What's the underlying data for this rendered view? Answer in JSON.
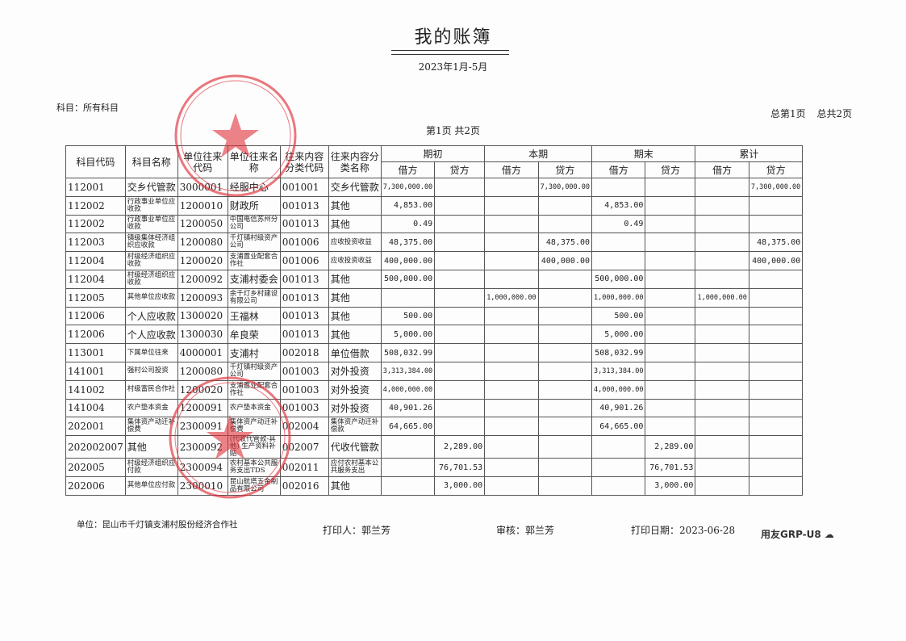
{
  "title": "我的账簿",
  "period": "2023年1月-5月",
  "subject": "科目：所有科目",
  "page_total": "总第1页 总共2页",
  "page_info": "第1页 共2页",
  "headers": {
    "code": "科目代码",
    "name": "科目名称",
    "unit_code": "单位往来代码",
    "unit_name": "单位往来名称",
    "cat_code": "往来内容分类代码",
    "cat_name": "往来内容分类名称",
    "groups": [
      "期初",
      "本期",
      "期末",
      "累计"
    ],
    "debit": "借方",
    "credit": "贷方"
  },
  "rows": [
    [
      "112001",
      "交乡代管款",
      "3000001",
      "经服中心",
      "001001",
      "交乡代管款",
      "7,300,000.00",
      "",
      "",
      "7,300,000.00",
      "",
      "",
      "",
      "7,300,000.00"
    ],
    [
      "112002",
      "行政事业单位应收款",
      "1200010",
      "财政所",
      "001013",
      "其他",
      "4,853.00",
      "",
      "",
      "",
      "4,853.00",
      "",
      "",
      ""
    ],
    [
      "112002",
      "行政事业单位应收款",
      "1200050",
      "中国电信苏州分公司",
      "001013",
      "其他",
      "0.49",
      "",
      "",
      "",
      "0.49",
      "",
      "",
      ""
    ],
    [
      "112003",
      "镇级集体经济组织应收款",
      "1200080",
      "千灯镇村级资产公司",
      "001006",
      "应收投资收益",
      "48,375.00",
      "",
      "",
      "48,375.00",
      "",
      "",
      "",
      "48,375.00"
    ],
    [
      "112004",
      "村级经济组织应收款",
      "1200020",
      "支浦置业配套合作社",
      "001006",
      "应收投资收益",
      "400,000.00",
      "",
      "",
      "400,000.00",
      "",
      "",
      "",
      "400,000.00"
    ],
    [
      "112004",
      "村级经济组织应收款",
      "1200092",
      "支浦村委会",
      "001013",
      "其他",
      "500,000.00",
      "",
      "",
      "",
      "500,000.00",
      "",
      "",
      ""
    ],
    [
      "112005",
      "其他单位应收款",
      "1200093",
      "余千灯乡村建设有限公司",
      "001013",
      "其他",
      "",
      "",
      "1,000,000.00",
      "",
      "1,000,000.00",
      "",
      "1,000,000.00",
      ""
    ],
    [
      "112006",
      "个人应收款",
      "1300020",
      "王福林",
      "001013",
      "其他",
      "500.00",
      "",
      "",
      "",
      "500.00",
      "",
      "",
      ""
    ],
    [
      "112006",
      "个人应收款",
      "1300030",
      "牟良荣",
      "001013",
      "其他",
      "5,000.00",
      "",
      "",
      "",
      "5,000.00",
      "",
      "",
      ""
    ],
    [
      "113001",
      "下属单位往来",
      "4000001",
      "支浦村",
      "002018",
      "单位借款",
      "508,032.99",
      "",
      "",
      "",
      "508,032.99",
      "",
      "",
      ""
    ],
    [
      "141001",
      "强村公司投资",
      "1200080",
      "千灯镇村级资产公司",
      "001003",
      "对外投资",
      "3,313,384.00",
      "",
      "",
      "",
      "3,313,384.00",
      "",
      "",
      ""
    ],
    [
      "141002",
      "村级富民合作社",
      "1200020",
      "支浦置业配套合作社",
      "001003",
      "对外投资",
      "4,000,000.00",
      "",
      "",
      "",
      "4,000,000.00",
      "",
      "",
      ""
    ],
    [
      "141004",
      "农户垫本资金",
      "1200091",
      "农户垫本资金",
      "001003",
      "对外投资",
      "40,901.26",
      "",
      "",
      "",
      "40,901.26",
      "",
      "",
      ""
    ],
    [
      "202001",
      "集体资产动迁补偿费",
      "2300091",
      "集体资产动迁补偿费",
      "002004",
      "集体资产动迁补偿款",
      "64,665.00",
      "",
      "",
      "",
      "64,665.00",
      "",
      "",
      ""
    ],
    [
      "202002007",
      "其他",
      "2300092",
      "(代收代管款-其他) 生产资料补贴",
      "002007",
      "代收代管款",
      "",
      "2,289.00",
      "",
      "",
      "",
      "2,289.00",
      "",
      ""
    ],
    [
      "202005",
      "村级经济组织应付款",
      "2300094",
      "农村基本公共服务支出TDS",
      "002011",
      "应付农村基本公共服务支出",
      "",
      "76,701.53",
      "",
      "",
      "",
      "76,701.53",
      "",
      ""
    ],
    [
      "202006",
      "其他单位应付款",
      "2300010",
      "昆山航塔五金制品有限公司",
      "002016",
      "其他",
      "",
      "3,000.00",
      "",
      "",
      "",
      "3,000.00",
      "",
      ""
    ]
  ],
  "footer": {
    "unit": "单位：昆山市千灯镇支浦村股份经济合作社",
    "printer": "打印人：郭兰芳",
    "reviewer": "审核：郭兰芳",
    "print_date": "打印日期：2023-06-28",
    "logo": "用友GRP-U8"
  },
  "stamp_text": "昆山市千灯镇支浦村股份经济合作社",
  "stamp_color": "#e0303a"
}
